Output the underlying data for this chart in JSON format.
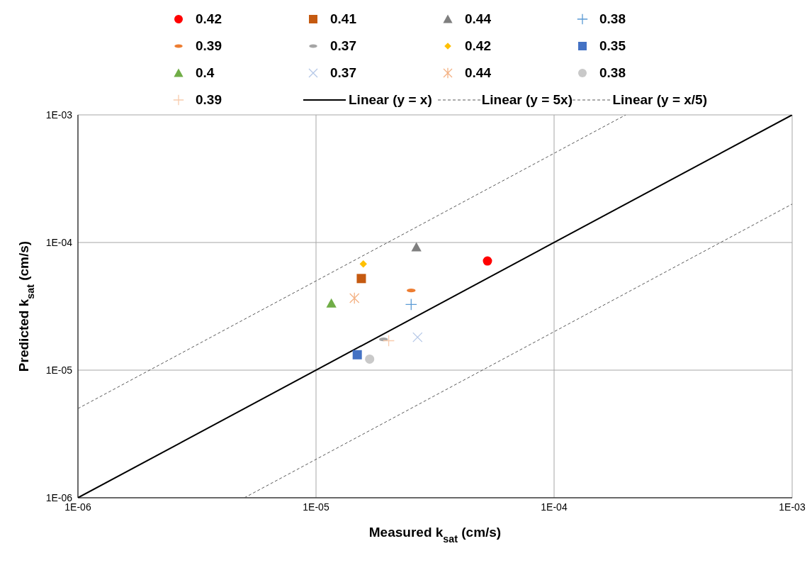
{
  "chart_data": {
    "type": "scatter",
    "xlabel": "Measured k$_{sat}$ (cm/s)",
    "ylabel": "Predicted k$_{sat}$ (cm/s)",
    "log": "xy",
    "grid": true,
    "legend": "top",
    "xlim": [
      1e-06,
      0.001
    ],
    "ylim": [
      1e-06,
      0.001
    ],
    "xticks": [
      {
        "value": 1e-06,
        "label": "1E-06"
      },
      {
        "value": 1e-05,
        "label": "1E-05"
      },
      {
        "value": 0.0001,
        "label": "1E-04"
      },
      {
        "value": 0.001,
        "label": "1E-03"
      }
    ],
    "yticks": [
      {
        "value": 1e-06,
        "label": "1E-06"
      },
      {
        "value": 1e-05,
        "label": "1E-05"
      },
      {
        "value": 0.0001,
        "label": "1E-04"
      },
      {
        "value": 0.001,
        "label": "1E-03"
      }
    ],
    "series": [
      {
        "name": "0.42",
        "marker": "circle",
        "color": "#ff0000",
        "x": [
          5.25e-05
        ],
        "values": [
          7.16e-05
        ]
      },
      {
        "name": "0.41",
        "marker": "square",
        "color": "#c55a11",
        "x": [
          1.55e-05
        ],
        "values": [
          5.22e-05
        ]
      },
      {
        "name": "0.44",
        "marker": "triangle",
        "color": "#7f7f7f",
        "x": [
          2.64e-05
        ],
        "values": [
          9.18e-05
        ]
      },
      {
        "name": "0.38",
        "marker": "plus",
        "color": "#5b9bd5",
        "x": [
          2.51e-05
        ],
        "values": [
          3.27e-05
        ]
      },
      {
        "name": "0.39",
        "color": "#ed7d31",
        "x": [
          2.51e-05
        ],
        "values": [
          4.21e-05
        ]
      },
      {
        "name": "0.37",
        "color": "#a5a5a5",
        "x": [
          1.92e-05
        ],
        "values": [
          1.74e-05
        ]
      },
      {
        "name": "0.42",
        "marker": "diamond",
        "color": "#ffc000",
        "x": [
          1.58e-05
        ],
        "values": [
          6.79e-05
        ]
      },
      {
        "name": "0.35",
        "marker": "square",
        "color": "#4472c4",
        "x": [
          1.49e-05
        ],
        "values": [
          1.32e-05
        ]
      },
      {
        "name": "0.4",
        "marker": "triangle",
        "color": "#70ad47",
        "x": [
          1.16e-05
        ],
        "values": [
          3.33e-05
        ]
      },
      {
        "name": "0.37",
        "marker": "x",
        "color": "#b4c7e7",
        "x": [
          2.67e-05
        ],
        "values": [
          1.81e-05
        ]
      },
      {
        "name": "0.44",
        "marker": "cross",
        "color": "#f4b183",
        "x": [
          1.45e-05
        ],
        "values": [
          3.66e-05
        ]
      },
      {
        "name": "0.38",
        "marker": "circle",
        "color": "#c9c9c9",
        "x": [
          1.68e-05
        ],
        "values": [
          1.22e-05
        ]
      },
      {
        "name": "0.39",
        "marker": "plus",
        "color": "#f8cbad",
        "x": [
          2.02e-05
        ],
        "values": [
          1.7e-05
        ]
      },
      {
        "name": "Linear (y = x)",
        "type": "line",
        "line_style": "solid",
        "color": "#000000",
        "x": [
          1e-06,
          0.001
        ],
        "values": [
          1e-06,
          0.001
        ]
      },
      {
        "name": "Linear (y = 5x)",
        "type": "line",
        "line_style": "dashed",
        "color": "#595959",
        "x": [
          1e-06,
          0.0002
        ],
        "values": [
          5e-06,
          0.001
        ]
      },
      {
        "name": "Linear (y = x/5)",
        "type": "line",
        "line_style": "dashed",
        "color": "#595959",
        "x": [
          5e-06,
          0.001
        ],
        "values": [
          1e-06,
          0.0002
        ]
      }
    ]
  }
}
